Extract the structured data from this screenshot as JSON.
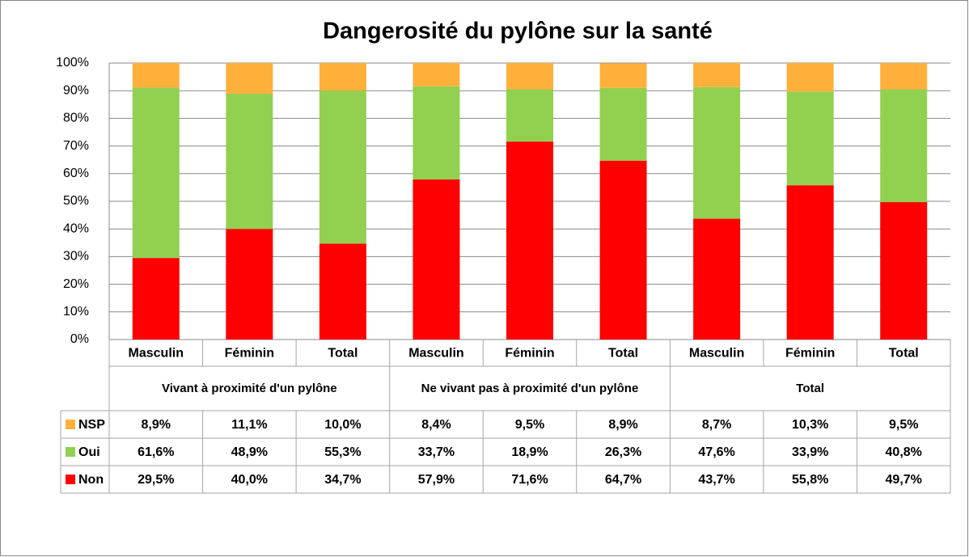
{
  "chart_data": {
    "type": "stacked_bar",
    "title": "Dangerosité du pylône sur la santé",
    "groups": [
      {
        "name": "Vivant à proximité d'un pylône",
        "categories": [
          "Masculin",
          "Féminin",
          "Total"
        ]
      },
      {
        "name": "Ne vivant pas à proximité d'un pylône",
        "categories": [
          "Masculin",
          "Féminin",
          "Total"
        ]
      },
      {
        "name": "Total",
        "categories": [
          "Masculin",
          "Féminin",
          "Total"
        ]
      }
    ],
    "series": [
      {
        "name": "Non",
        "color": "#ff0000",
        "values": [
          29.5,
          40.0,
          34.7,
          57.9,
          71.6,
          64.7,
          43.7,
          55.8,
          49.7
        ],
        "value_labels": [
          "29,5%",
          "40,0%",
          "34,7%",
          "57,9%",
          "71,6%",
          "64,7%",
          "43,7%",
          "55,8%",
          "49,7%"
        ]
      },
      {
        "name": "Oui",
        "color": "#92d050",
        "values": [
          61.6,
          48.9,
          55.3,
          33.7,
          18.9,
          26.3,
          47.6,
          33.9,
          40.8
        ],
        "value_labels": [
          "61,6%",
          "48,9%",
          "55,3%",
          "33,7%",
          "18,9%",
          "26,3%",
          "47,6%",
          "33,9%",
          "40,8%"
        ]
      },
      {
        "name": "NSP",
        "color": "#ffb03b",
        "values": [
          8.9,
          11.1,
          10.0,
          8.4,
          9.5,
          8.9,
          8.7,
          10.3,
          9.5
        ],
        "value_labels": [
          "8,9%",
          "11,1%",
          "10,0%",
          "8,4%",
          "9,5%",
          "8,9%",
          "8,7%",
          "10,3%",
          "9,5%"
        ]
      }
    ],
    "ylim": [
      0,
      100
    ],
    "yticks": [
      {
        "value": 0,
        "label": "0%"
      },
      {
        "value": 10,
        "label": "10%"
      },
      {
        "value": 20,
        "label": "20%"
      },
      {
        "value": 30,
        "label": "30%"
      },
      {
        "value": 40,
        "label": "40%"
      },
      {
        "value": 50,
        "label": "50%"
      },
      {
        "value": 60,
        "label": "60%"
      },
      {
        "value": 70,
        "label": "70%"
      },
      {
        "value": 80,
        "label": "80%"
      },
      {
        "value": 90,
        "label": "90%"
      },
      {
        "value": 100,
        "label": "100%"
      }
    ],
    "grid": true
  }
}
